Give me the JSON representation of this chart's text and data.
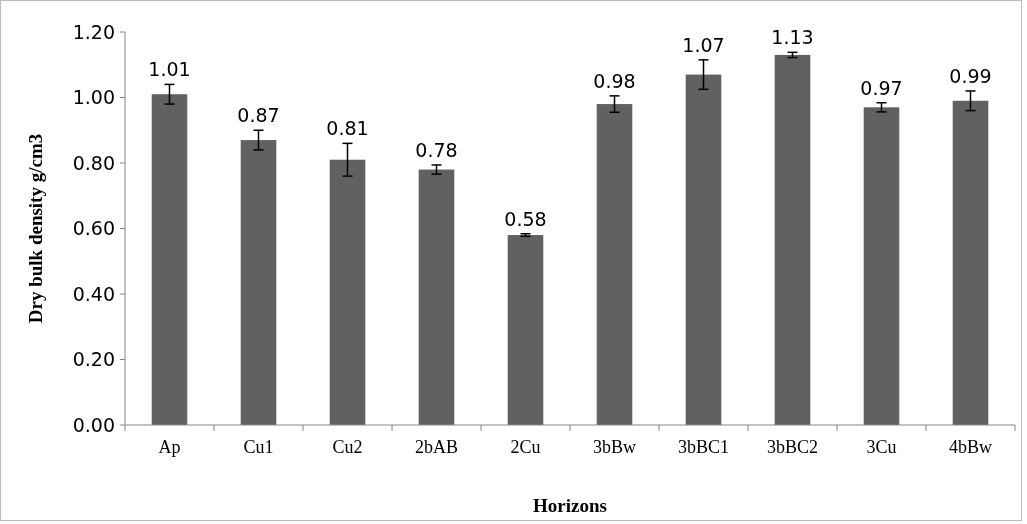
{
  "chart_data": {
    "type": "bar",
    "xlabel": "Horizons",
    "ylabel": "Dry bulk density g/cm3",
    "categories": [
      "Ap",
      "Cu1",
      "Cu2",
      "2bAB",
      "2Cu",
      "3bBw",
      "3bBC1",
      "3bBC2",
      "3Cu",
      "4bBw"
    ],
    "values": [
      1.01,
      0.87,
      0.81,
      0.78,
      0.58,
      0.98,
      1.07,
      1.13,
      0.97,
      0.99
    ],
    "errors": [
      0.03,
      0.03,
      0.05,
      0.014,
      0.004,
      0.025,
      0.045,
      0.008,
      0.014,
      0.03
    ],
    "color": "#616161",
    "data_labels": true,
    "grid": false,
    "ylim": [
      0,
      1.2
    ],
    "yticks": [
      {
        "value": 0,
        "label": "0.00"
      },
      {
        "value": 0.2,
        "label": "0.20"
      },
      {
        "value": 0.4,
        "label": "0.40"
      },
      {
        "value": 0.6,
        "label": "0.60"
      },
      {
        "value": 0.8,
        "label": "0.80"
      },
      {
        "value": 1,
        "label": "1.00"
      },
      {
        "value": 1.2,
        "label": "1.20"
      }
    ]
  }
}
